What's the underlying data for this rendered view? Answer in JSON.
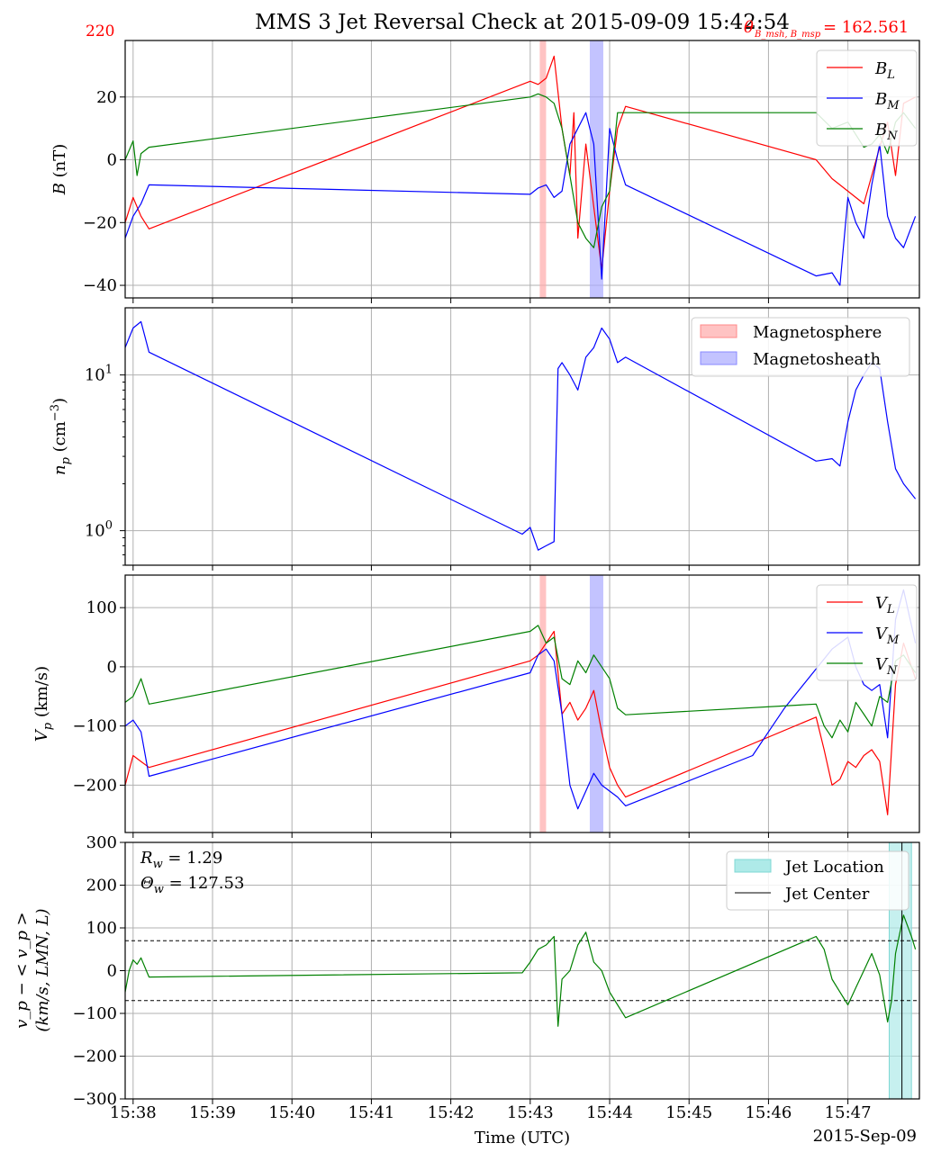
{
  "figure": {
    "title": "MMS 3 Jet Reversal Check at 2015-09-09 15:42:54",
    "corner_left": "220",
    "corner_right_theta": "θ",
    "corner_right_sub": "B_msh, B_msp",
    "corner_right_value": "= 162.561",
    "xlabel": "Time (UTC)",
    "date_label": "2015-Sep-09",
    "colors": {
      "red": "#ff0000",
      "blue": "#0000ff",
      "green": "#008000",
      "grid": "#b0b0b0",
      "msp_fill": "#ffaaaa",
      "msh_fill": "#aaaaff",
      "jet_fill": "#aeeae8",
      "accent_text": "#ff0000"
    }
  },
  "chart_data": [
    {
      "type": "line",
      "panel": "B",
      "ylabel": "B (nT)",
      "ylim": [
        -44,
        38
      ],
      "yticks": [
        -40,
        -20,
        0,
        20
      ],
      "ytick_labels": [
        "−40",
        "−20",
        "0",
        "20"
      ],
      "legend": [
        "B_L",
        "B_M",
        "B_N"
      ],
      "legend_placement": "top-right",
      "series": [
        {
          "name": "B_L",
          "color": "#ff0000",
          "x": [
            37.9,
            38.0,
            38.1,
            38.2,
            43.0,
            43.1,
            43.2,
            43.3,
            43.4,
            43.5,
            43.55,
            43.6,
            43.7,
            43.8,
            43.9,
            44.0,
            44.1,
            44.2,
            46.6,
            46.8,
            47.0,
            47.1,
            47.2,
            47.3,
            47.4,
            47.5,
            47.6,
            47.7,
            47.85
          ],
          "values": [
            -20,
            -12,
            -18,
            -22,
            25,
            24,
            26,
            33,
            10,
            -5,
            15,
            -25,
            5,
            -15,
            -35,
            -10,
            10,
            17,
            0,
            -6,
            -10,
            -12,
            -14,
            -5,
            4,
            12,
            -5,
            18,
            20
          ]
        },
        {
          "name": "B_M",
          "color": "#0000ff",
          "x": [
            37.9,
            38.0,
            38.1,
            38.2,
            43.0,
            43.1,
            43.2,
            43.3,
            43.4,
            43.5,
            43.6,
            43.7,
            43.8,
            43.9,
            44.0,
            44.1,
            44.2,
            46.6,
            46.8,
            46.9,
            47.0,
            47.05,
            47.1,
            47.2,
            47.3,
            47.4,
            47.5,
            47.6,
            47.7,
            47.85
          ],
          "values": [
            -25,
            -18,
            -14,
            -8,
            -11,
            -9,
            -8,
            -12,
            -10,
            5,
            10,
            15,
            5,
            -38,
            10,
            0,
            -8,
            -37,
            -36,
            -40,
            -12,
            -16,
            -20,
            -25,
            -8,
            5,
            -18,
            -25,
            -28,
            -18
          ]
        },
        {
          "name": "B_N",
          "color": "#008000",
          "x": [
            37.9,
            38.0,
            38.05,
            38.1,
            38.2,
            43.0,
            43.1,
            43.2,
            43.3,
            43.4,
            43.5,
            43.6,
            43.7,
            43.8,
            43.9,
            44.0,
            44.1,
            44.2,
            46.6,
            46.8,
            47.0,
            47.2,
            47.3,
            47.4,
            47.5,
            47.6,
            47.7,
            47.85
          ],
          "values": [
            0,
            6,
            -5,
            2,
            4,
            20,
            21,
            20,
            18,
            10,
            -5,
            -20,
            -25,
            -28,
            -15,
            -10,
            15,
            15,
            15,
            10,
            12,
            4,
            5,
            8,
            2,
            12,
            15,
            10
          ]
        }
      ],
      "shaded_intervals": [
        {
          "start": 43.12,
          "end": 43.2,
          "label": "Magnetosphere"
        },
        {
          "start": 43.75,
          "end": 43.92,
          "label": "Magnetosheath"
        }
      ]
    },
    {
      "type": "line",
      "panel": "density",
      "ylabel": "n_p (cm^-3)",
      "yscale": "log",
      "ylim": [
        0.6,
        27
      ],
      "yticks": [
        1,
        10
      ],
      "ytick_labels": [
        "10^0",
        "10^1"
      ],
      "legend": [
        "Magnetosphere",
        "Magnetosheath"
      ],
      "legend_placement": "top-right",
      "series": [
        {
          "name": "n_p",
          "color": "#0000ff",
          "x": [
            37.9,
            38.0,
            38.1,
            38.2,
            42.9,
            43.0,
            43.1,
            43.2,
            43.3,
            43.35,
            43.4,
            43.5,
            43.6,
            43.7,
            43.8,
            43.9,
            44.0,
            44.1,
            44.2,
            46.6,
            46.8,
            46.9,
            47.0,
            47.1,
            47.2,
            47.3,
            47.4,
            47.5,
            47.6,
            47.7,
            47.85
          ],
          "values": [
            15,
            20,
            22,
            14,
            0.95,
            1.05,
            0.75,
            0.8,
            0.85,
            11,
            12,
            10,
            8,
            13,
            15,
            20,
            17,
            12,
            13,
            2.8,
            2.9,
            2.6,
            5,
            8,
            10,
            12,
            11,
            5,
            2.5,
            2.0,
            1.6
          ]
        }
      ]
    },
    {
      "type": "line",
      "panel": "velocity",
      "ylabel": "V_p (km/s)",
      "ylim": [
        -280,
        155
      ],
      "yticks": [
        -200,
        -100,
        0,
        100
      ],
      "ytick_labels": [
        "−200",
        "−100",
        "0",
        "100"
      ],
      "legend": [
        "V_L",
        "V_M",
        "V_N"
      ],
      "legend_placement": "top-right",
      "series": [
        {
          "name": "V_L",
          "color": "#ff0000",
          "x": [
            37.9,
            38.0,
            38.1,
            38.2,
            43.0,
            43.1,
            43.2,
            43.3,
            43.4,
            43.5,
            43.6,
            43.7,
            43.8,
            43.9,
            44.0,
            44.1,
            44.2,
            46.6,
            46.7,
            46.8,
            46.9,
            47.0,
            47.1,
            47.2,
            47.3,
            47.4,
            47.5,
            47.6,
            47.7,
            47.85
          ],
          "values": [
            -200,
            -150,
            -160,
            -170,
            10,
            20,
            40,
            60,
            -80,
            -60,
            -90,
            -70,
            -40,
            -110,
            -170,
            -200,
            -220,
            -85,
            -140,
            -200,
            -190,
            -160,
            -170,
            -150,
            -140,
            -160,
            -250,
            -30,
            40,
            -20
          ]
        },
        {
          "name": "V_M",
          "color": "#0000ff",
          "x": [
            37.9,
            38.0,
            38.1,
            38.2,
            43.0,
            43.1,
            43.2,
            43.3,
            43.4,
            43.5,
            43.6,
            43.7,
            43.8,
            43.9,
            44.0,
            44.1,
            44.2,
            45.8,
            46.0,
            46.2,
            46.5,
            46.8,
            47.0,
            47.1,
            47.2,
            47.3,
            47.4,
            47.5,
            47.6,
            47.7,
            47.85
          ],
          "values": [
            -100,
            -90,
            -110,
            -185,
            -10,
            20,
            30,
            10,
            -80,
            -200,
            -240,
            -210,
            -180,
            -200,
            -210,
            -220,
            -235,
            -150,
            -110,
            -70,
            -20,
            30,
            50,
            0,
            -30,
            -40,
            -30,
            -120,
            80,
            130,
            40
          ]
        },
        {
          "name": "V_N",
          "color": "#008000",
          "x": [
            37.9,
            38.0,
            38.1,
            38.2,
            43.0,
            43.1,
            43.2,
            43.3,
            43.4,
            43.5,
            43.6,
            43.7,
            43.8,
            43.9,
            44.0,
            44.1,
            44.2,
            46.6,
            46.7,
            46.8,
            46.9,
            47.0,
            47.1,
            47.2,
            47.3,
            47.4,
            47.5,
            47.6,
            47.7,
            47.85
          ],
          "values": [
            -60,
            -50,
            -20,
            -63,
            60,
            70,
            40,
            50,
            -20,
            -30,
            10,
            -10,
            20,
            0,
            -20,
            -70,
            -81,
            -63,
            -100,
            -120,
            -90,
            -110,
            -60,
            -80,
            -100,
            -50,
            -60,
            10,
            20,
            -10
          ]
        }
      ],
      "shaded_intervals": [
        {
          "start": 43.12,
          "end": 43.2,
          "label": "Magnetosphere"
        },
        {
          "start": 43.75,
          "end": 43.92,
          "label": "Magnetosheath"
        }
      ]
    },
    {
      "type": "line",
      "panel": "velocity-deviation",
      "ylabel_line1": "v_p − < v_p >",
      "ylabel_line2": "(km/s, LMN, L)",
      "ylim": [
        -300,
        300
      ],
      "yticks": [
        -300,
        -200,
        -100,
        0,
        100,
        200,
        300
      ],
      "ytick_labels": [
        "−300",
        "−200",
        "−100",
        "0",
        "100",
        "200",
        "300"
      ],
      "annotations": [
        "R_w = 1.29",
        "Θ_w = 127.53"
      ],
      "threshold_lines": [
        70,
        -70
      ],
      "legend": [
        "Jet Location",
        "Jet Center"
      ],
      "legend_placement": "top-right",
      "jet_location": {
        "start": 47.52,
        "end": 47.8
      },
      "jet_center": 47.68,
      "series": [
        {
          "name": "v_p",
          "color": "#008000",
          "x": [
            37.9,
            37.95,
            38.0,
            38.05,
            38.1,
            38.2,
            42.9,
            43.0,
            43.1,
            43.2,
            43.3,
            43.35,
            43.4,
            43.5,
            43.6,
            43.7,
            43.8,
            43.9,
            44.0,
            44.1,
            44.2,
            46.6,
            46.7,
            46.8,
            46.9,
            47.0,
            47.1,
            47.2,
            47.3,
            47.4,
            47.5,
            47.55,
            47.6,
            47.7,
            47.8,
            47.85
          ],
          "values": [
            -50,
            0,
            25,
            15,
            30,
            -15,
            -5,
            20,
            50,
            60,
            80,
            -130,
            -20,
            0,
            60,
            90,
            20,
            0,
            -50,
            -80,
            -110,
            80,
            50,
            -20,
            -50,
            -80,
            -40,
            0,
            40,
            -10,
            -120,
            -70,
            40,
            130,
            80,
            50
          ]
        }
      ]
    }
  ],
  "xaxis": {
    "range": [
      37.9,
      47.9
    ],
    "ticks": [
      38,
      39,
      40,
      41,
      42,
      43,
      44,
      45,
      46,
      47
    ],
    "tick_labels": [
      "15:38",
      "15:39",
      "15:40",
      "15:41",
      "15:42",
      "15:43",
      "15:44",
      "15:45",
      "15:46",
      "15:47"
    ]
  },
  "legends": {
    "b": [
      "B",
      "L",
      "B",
      "M",
      "B",
      "N"
    ],
    "v": [
      "V",
      "L",
      "V",
      "M",
      "V",
      "N"
    ],
    "regions": [
      "Magnetosphere",
      "Magnetosheath"
    ],
    "jet": [
      "Jet Location",
      "Jet Center"
    ]
  },
  "annotations_text": {
    "rw_sym": "R",
    "rw_sub": "w",
    "rw_val": " = 1.29",
    "tw_sym": "Θ",
    "tw_sub": "w",
    "tw_val": " = 127.53"
  },
  "ylabels": {
    "b_sym": "B",
    "b_unit": " (nT)",
    "n_sym": "n",
    "n_sub": "p",
    "n_unit": " (cm",
    "n_exp": "−3",
    "n_close": ")",
    "v_sym": "V",
    "v_sub": "p",
    "v_unit": " (km/s)",
    "d_line1": "v_p − < v_p >",
    "d_line2": "(km/s, LMN, L)"
  }
}
